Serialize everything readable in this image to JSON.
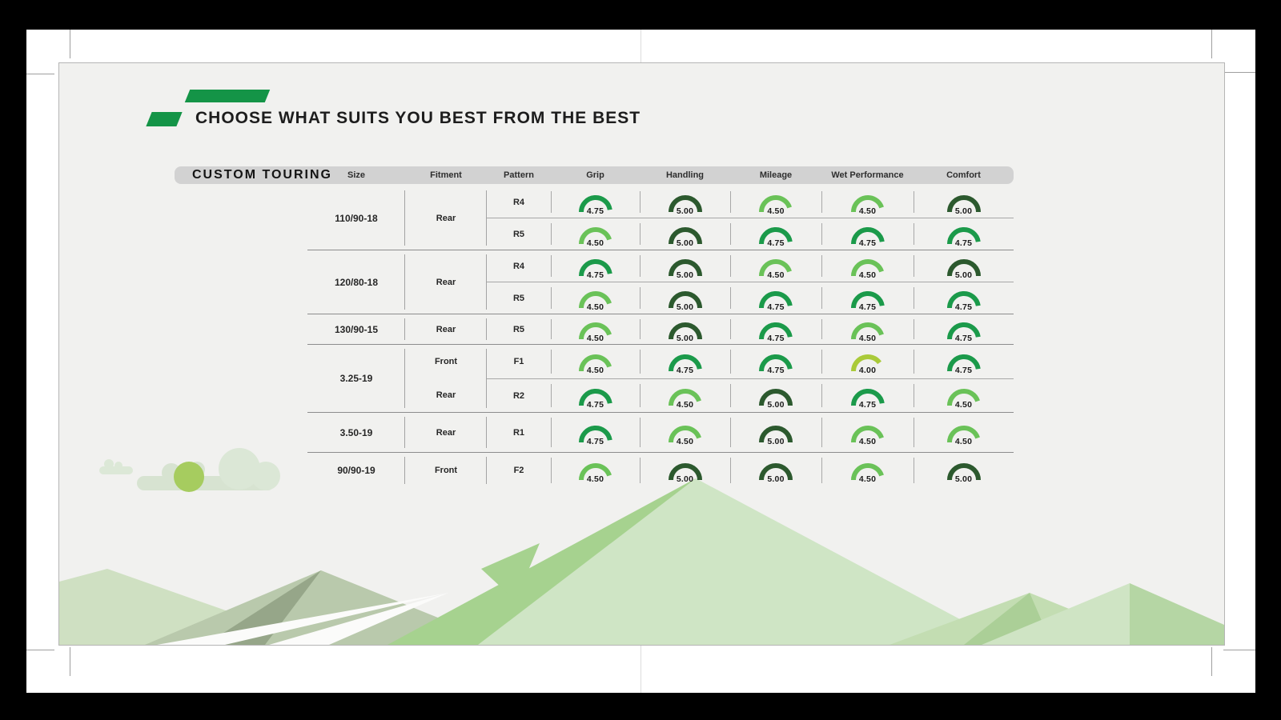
{
  "page": {
    "title": "CHOOSE WHAT SUITS YOU BEST FROM THE BEST",
    "brand_label": "CUSTOM TOURING"
  },
  "colors": {
    "accent_green": "#149447",
    "header_bar": "#d2d2d2",
    "slide_bg": "#f1f1ef",
    "rating_colors": {
      "5.00": "#2c592e",
      "4.75": "#1b9a4a",
      "4.50": "#6ac258",
      "4.00": "#aaca39"
    }
  },
  "table": {
    "columns": [
      "Size",
      "Fitment",
      "Pattern",
      "Grip",
      "Handling",
      "Mileage",
      "Wet Performance",
      "Comfort"
    ],
    "groups": [
      {
        "size": "110/90-18",
        "fitment": "Rear",
        "rows": [
          {
            "pattern": "R4",
            "ratings": [
              "4.75",
              "5.00",
              "4.50",
              "4.50",
              "5.00"
            ]
          },
          {
            "pattern": "R5",
            "ratings": [
              "4.50",
              "5.00",
              "4.75",
              "4.75",
              "4.75"
            ]
          }
        ]
      },
      {
        "size": "120/80-18",
        "fitment": "Rear",
        "rows": [
          {
            "pattern": "R4",
            "ratings": [
              "4.75",
              "5.00",
              "4.50",
              "4.50",
              "5.00"
            ]
          },
          {
            "pattern": "R5",
            "ratings": [
              "4.50",
              "5.00",
              "4.75",
              "4.75",
              "4.75"
            ]
          }
        ]
      },
      {
        "size": "130/90-15",
        "fitment": "Rear",
        "rows": [
          {
            "pattern": "R5",
            "ratings": [
              "4.50",
              "5.00",
              "4.75",
              "4.50",
              "4.75"
            ]
          }
        ]
      },
      {
        "size": "3.25-19",
        "fitment": null,
        "rows": [
          {
            "fitment": "Front",
            "pattern": "F1",
            "ratings": [
              "4.50",
              "4.75",
              "4.75",
              "4.00",
              "4.75"
            ]
          },
          {
            "fitment": "Rear",
            "pattern": "R2",
            "ratings": [
              "4.75",
              "4.50",
              "5.00",
              "4.75",
              "4.50"
            ]
          }
        ]
      },
      {
        "size": "3.50-19",
        "fitment": "Rear",
        "rows": [
          {
            "pattern": "R1",
            "ratings": [
              "4.75",
              "4.50",
              "5.00",
              "4.50",
              "4.50"
            ]
          }
        ]
      },
      {
        "size": "90/90-19",
        "fitment": "Front",
        "rows": [
          {
            "pattern": "F2",
            "ratings": [
              "4.50",
              "5.00",
              "5.00",
              "4.50",
              "5.00"
            ]
          }
        ]
      }
    ]
  },
  "chart_data": {
    "type": "table",
    "title": "CUSTOM TOURING",
    "gauge_type": "semicircle-gauge",
    "gauge_scale": [
      0,
      5
    ],
    "columns": [
      "Size",
      "Fitment",
      "Pattern",
      "Grip",
      "Handling",
      "Mileage",
      "Wet Performance",
      "Comfort"
    ],
    "rows": [
      {
        "size": "110/90-18",
        "fitment": "Rear",
        "pattern": "R4",
        "grip": 4.75,
        "handling": 5.0,
        "mileage": 4.5,
        "wet_performance": 4.5,
        "comfort": 5.0
      },
      {
        "size": "110/90-18",
        "fitment": "Rear",
        "pattern": "R5",
        "grip": 4.5,
        "handling": 5.0,
        "mileage": 4.75,
        "wet_performance": 4.75,
        "comfort": 4.75
      },
      {
        "size": "120/80-18",
        "fitment": "Rear",
        "pattern": "R4",
        "grip": 4.75,
        "handling": 5.0,
        "mileage": 4.5,
        "wet_performance": 4.5,
        "comfort": 5.0
      },
      {
        "size": "120/80-18",
        "fitment": "Rear",
        "pattern": "R5",
        "grip": 4.5,
        "handling": 5.0,
        "mileage": 4.75,
        "wet_performance": 4.75,
        "comfort": 4.75
      },
      {
        "size": "130/90-15",
        "fitment": "Rear",
        "pattern": "R5",
        "grip": 4.5,
        "handling": 5.0,
        "mileage": 4.75,
        "wet_performance": 4.5,
        "comfort": 4.75
      },
      {
        "size": "3.25-19",
        "fitment": "Front",
        "pattern": "F1",
        "grip": 4.5,
        "handling": 4.75,
        "mileage": 4.75,
        "wet_performance": 4.0,
        "comfort": 4.75
      },
      {
        "size": "3.25-19",
        "fitment": "Rear",
        "pattern": "R2",
        "grip": 4.75,
        "handling": 4.5,
        "mileage": 5.0,
        "wet_performance": 4.75,
        "comfort": 4.5
      },
      {
        "size": "3.50-19",
        "fitment": "Rear",
        "pattern": "R1",
        "grip": 4.75,
        "handling": 4.5,
        "mileage": 5.0,
        "wet_performance": 4.5,
        "comfort": 4.5
      },
      {
        "size": "90/90-19",
        "fitment": "Front",
        "pattern": "F2",
        "grip": 4.5,
        "handling": 5.0,
        "mileage": 5.0,
        "wet_performance": 4.5,
        "comfort": 5.0
      }
    ]
  }
}
